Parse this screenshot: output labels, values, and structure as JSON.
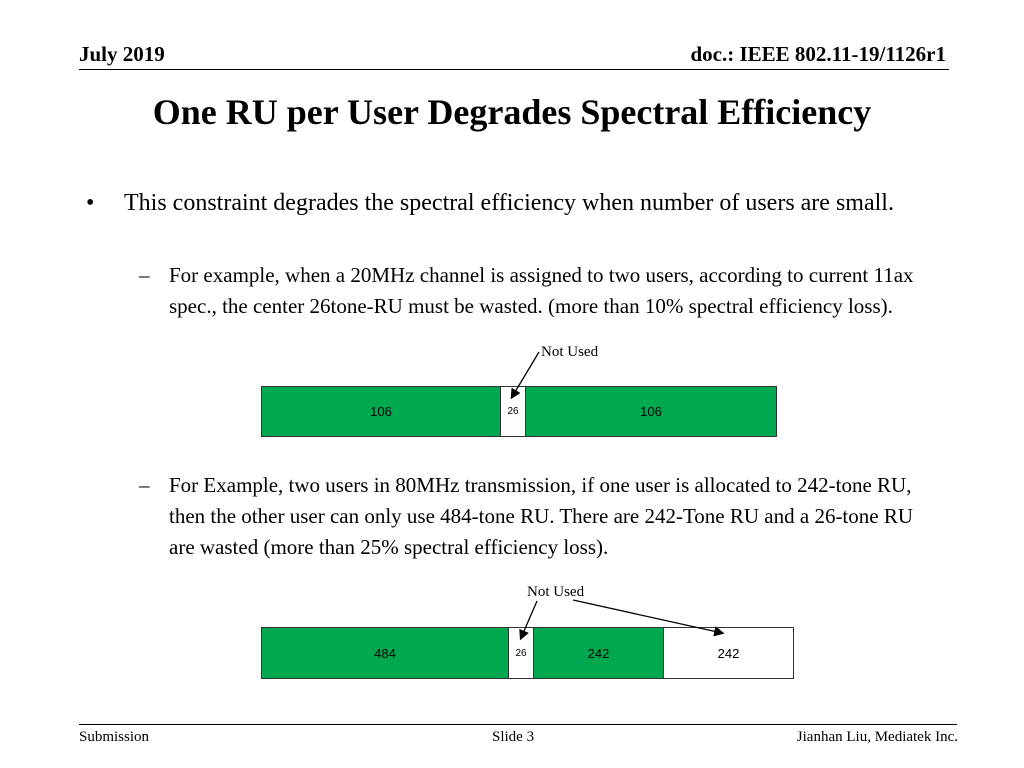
{
  "header": {
    "date": "July 2019",
    "doc_id": "doc.: IEEE 802.11-19/1126r1"
  },
  "title": "One RU per User Degrades Spectral Efficiency",
  "bullets": {
    "marker": "•",
    "main": "This constraint degrades the spectral efficiency when number of users are small.",
    "sub_marker": "–",
    "sub1": "For example, when a 20MHz channel is assigned to two users, according to current 11ax spec., the center 26tone-RU must be wasted. (more than 10% spectral efficiency loss).",
    "sub2": "For Example, two users in 80MHz transmission, if one user is allocated to 242-tone RU, then the other user can only use 484-tone RU. There are 242-Tone RU and a 26-tone RU are wasted (more than 25% spectral efficiency loss)."
  },
  "diagram1": {
    "annotation": "Not Used",
    "blocks": [
      "106",
      "26",
      "106"
    ]
  },
  "diagram2": {
    "annotation": "Not Used",
    "blocks": [
      "484",
      "26",
      "242",
      "242"
    ]
  },
  "colors": {
    "used_ru": "#00a84f",
    "unused_ru": "#ffffff"
  },
  "footer": {
    "left": "Submission",
    "center": "Slide 3",
    "right": "Jianhan Liu, Mediatek Inc."
  }
}
